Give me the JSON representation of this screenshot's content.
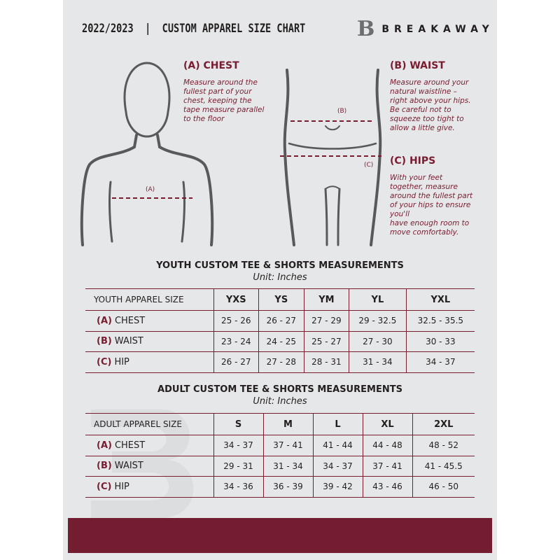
{
  "header": {
    "title": "2022/2023  |  CUSTOM APPAREL SIZE CHART",
    "brand": "BREAKAWAY"
  },
  "chest": {
    "title": "(A) CHEST",
    "text": "Measure around the\nfullest part of your\nchest, keeping the\ntape measure parallel\nto the floor",
    "marker": "(A)"
  },
  "waist": {
    "title": "(B) WAIST",
    "text": "Measure around your\nnatural waistline –\nright above your hips.\nBe careful not to\nsqueeze too tight to\nallow a little give.",
    "marker": "(B)"
  },
  "hips": {
    "title": "(C) HIPS",
    "text": "With your feet\ntogether, measure\naround the fullest part\nof your hips to ensure\nyou'll\nhave enough room to\nmove comfortably.",
    "marker": "(C)"
  },
  "youth": {
    "title": "YOUTH CUSTOM TEE & SHORTS MEASUREMENTS",
    "unit": "Unit: Inches",
    "header": "YOUTH APPAREL SIZE",
    "sizes": [
      "YXS",
      "YS",
      "YM",
      "YL",
      "YXL"
    ],
    "rows": [
      {
        "tag": "(A)",
        "label": "CHEST",
        "values": [
          "25 - 26",
          "26 - 27",
          "27 - 29",
          "29 - 32.5",
          "32.5 - 35.5"
        ]
      },
      {
        "tag": "(B)",
        "label": "WAIST",
        "values": [
          "23 - 24",
          "24 - 25",
          "25 - 27",
          "27 - 30",
          "30 - 33"
        ]
      },
      {
        "tag": "(C)",
        "label": "HIP",
        "values": [
          "26 - 27",
          "27 - 28",
          "28 - 31",
          "31 - 34",
          "34 - 37"
        ]
      }
    ]
  },
  "adult": {
    "title": "ADULT CUSTOM TEE & SHORTS MEASUREMENTS",
    "unit": "Unit: Inches",
    "header": "ADULT APPAREL SIZE",
    "sizes": [
      "S",
      "M",
      "L",
      "XL",
      "2XL"
    ],
    "rows": [
      {
        "tag": "(A)",
        "label": "CHEST",
        "values": [
          "34 - 37",
          "37 - 41",
          "41 - 44",
          "44 - 48",
          "48 - 52"
        ]
      },
      {
        "tag": "(B)",
        "label": "WAIST",
        "values": [
          "29 - 31",
          "31 - 34",
          "34 - 37",
          "37 - 41",
          "41 - 45.5"
        ]
      },
      {
        "tag": "(C)",
        "label": "HIP",
        "values": [
          "34 - 36",
          "36 - 39",
          "39 - 42",
          "43 - 46",
          "46 - 50"
        ]
      }
    ]
  },
  "colors": {
    "accent": "#7a1c30",
    "panel": "#e6e7e8",
    "footer": "#741c30"
  }
}
